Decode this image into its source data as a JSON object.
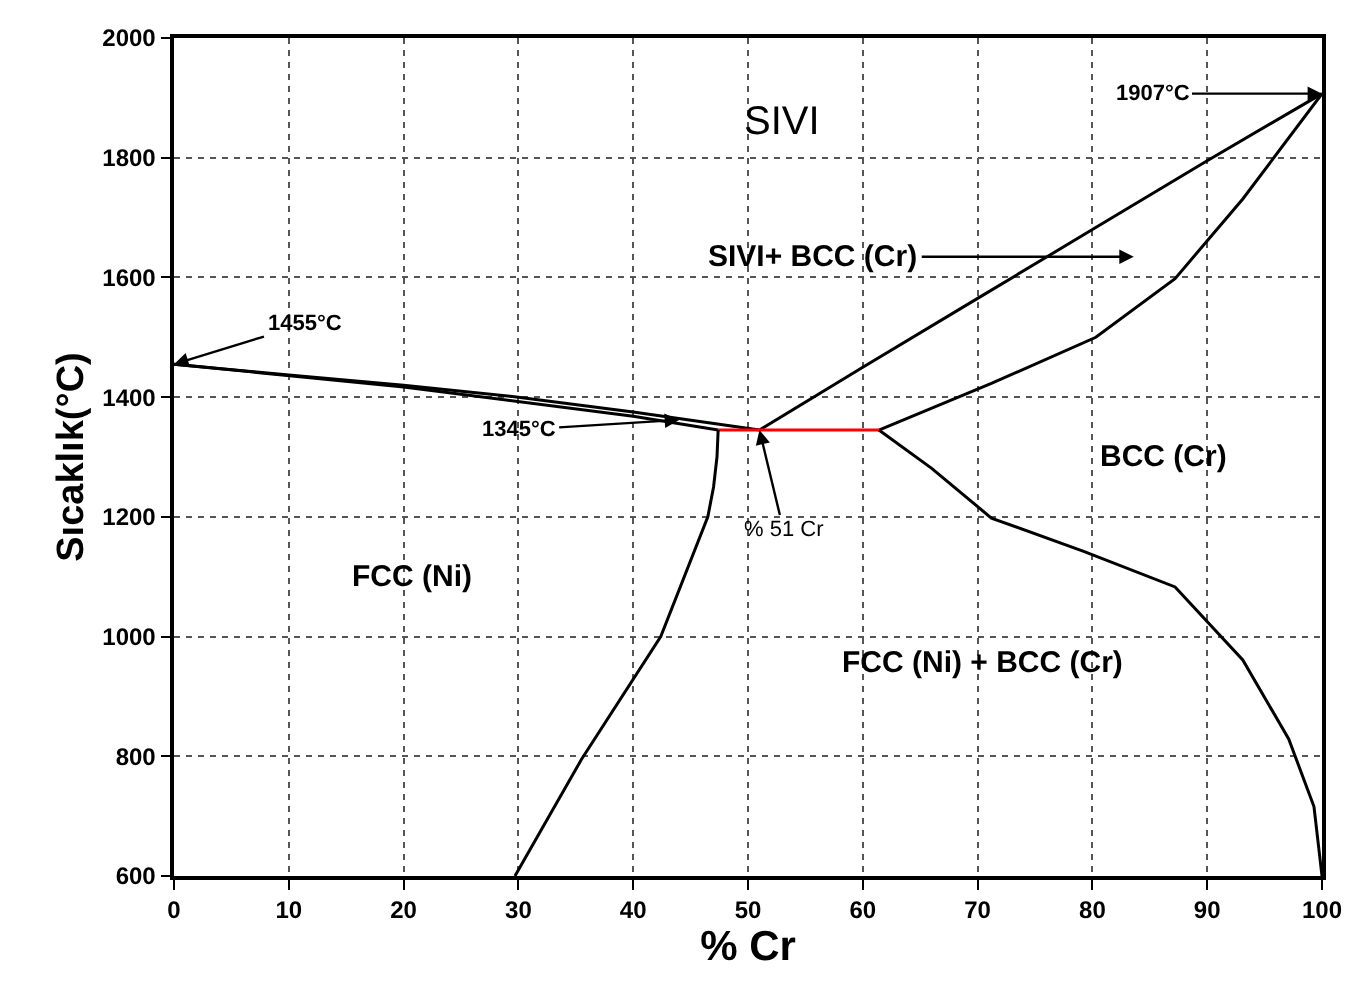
{
  "chart_data": {
    "type": "line",
    "xlabel": "% Cr",
    "ylabel": "Sıcaklık(°C)",
    "xlim": [
      0,
      100
    ],
    "xticks": [
      0,
      10,
      20,
      30,
      40,
      50,
      60,
      70,
      80,
      90,
      100
    ],
    "ylim": [
      600,
      2000
    ],
    "yticks": [
      600,
      800,
      1000,
      1200,
      1400,
      1600,
      1800,
      2000
    ],
    "grid": true,
    "marker": "none",
    "line_style": "solid",
    "series": [
      {
        "color": "#000000",
        "x": [
          0,
          10,
          20,
          30,
          40,
          51
        ],
        "values": [
          1455,
          1437,
          1420,
          1400,
          1375,
          1345
        ]
      },
      {
        "color": "#000000",
        "x": [
          0,
          20,
          40,
          47.4
        ],
        "values": [
          1455,
          1417,
          1368,
          1345
        ]
      },
      {
        "color": "#000000",
        "x": [
          51,
          60,
          70,
          80,
          90,
          100
        ],
        "values": [
          1345,
          1450,
          1565,
          1680,
          1795,
          1907
        ]
      },
      {
        "color": "#000000",
        "x": [
          61.4,
          71.2,
          80.3,
          87.2,
          93.1,
          100
        ],
        "values": [
          1345,
          1423,
          1500,
          1598,
          1731,
          1907
        ]
      },
      {
        "color": "#ff0000",
        "x": [
          47.4,
          61.4
        ],
        "values": [
          1345,
          1345
        ]
      },
      {
        "color": "#000000",
        "x": [
          47.4,
          47.3,
          47,
          46.5,
          42.4,
          35.5,
          29.7
        ],
        "values": [
          1345,
          1300,
          1250,
          1200,
          1000,
          795,
          600
        ]
      },
      {
        "color": "#000000",
        "x": [
          61.4,
          66,
          71.2,
          79.3,
          87.2,
          93.1,
          97.1,
          99.3,
          100
        ],
        "values": [
          1345,
          1281,
          1198,
          1142,
          1083,
          961,
          829,
          716,
          600
        ]
      }
    ],
    "annotations": [
      "SIVI",
      "SIVI+ BCC (Cr)",
      {
        "text": "1907°C",
        "x": 100,
        "y": 1907
      },
      {
        "text": "1455°C",
        "x": 0,
        "y": 1455
      },
      {
        "text": "1345°C",
        "x": 44,
        "y": 1362
      },
      {
        "text": "% 51 Cr",
        "x": 51,
        "y": 1345
      },
      "BCC (Cr)",
      "FCC (Ni)",
      "FCC (Ni) + BCC (Cr)"
    ]
  }
}
